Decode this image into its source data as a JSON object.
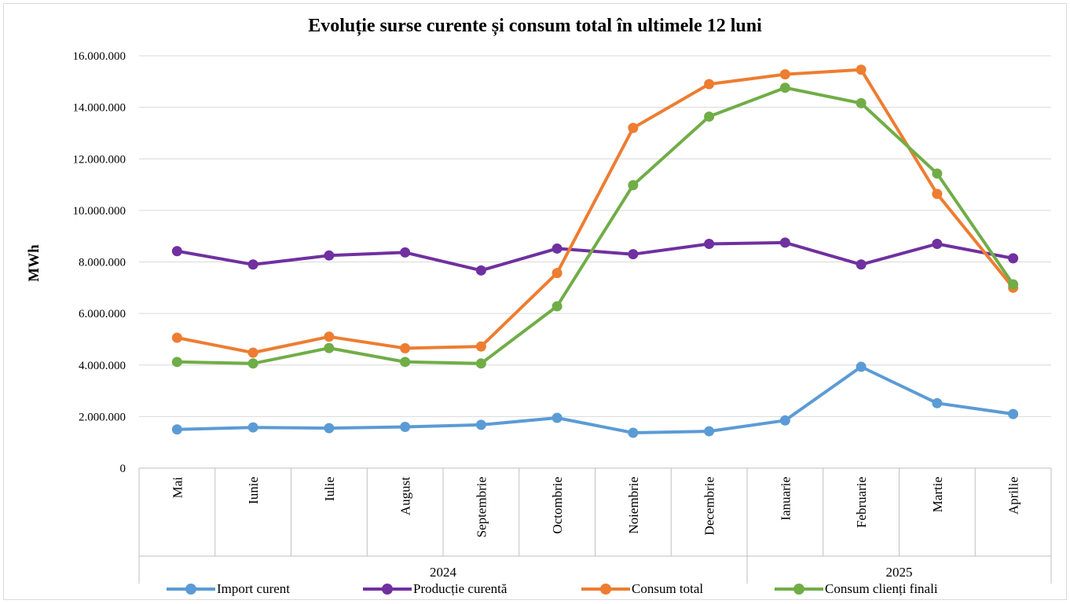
{
  "chart_data": {
    "type": "line",
    "title": "Evoluție surse curente și consum total în ultimele 12 luni",
    "ylabel": "MWh",
    "xlabel": "",
    "ylim": [
      0,
      16000000
    ],
    "y_ticks": [
      "0",
      "2.000.000",
      "4.000.000",
      "6.000.000",
      "8.000.000",
      "10.000.000",
      "12.000.000",
      "14.000.000",
      "16.000.000"
    ],
    "grid": true,
    "legend_position": "bottom",
    "categories": [
      "Mai",
      "Iunie",
      "Iulie",
      "August",
      "Septembrie",
      "Octombrie",
      "Noiembrie",
      "Decembrie",
      "Ianuarie",
      "Februarie",
      "Martie",
      "Aprilie"
    ],
    "year_groups": [
      {
        "label": "2024",
        "start": 0,
        "end": 7
      },
      {
        "label": "2025",
        "start": 8,
        "end": 11
      }
    ],
    "series": [
      {
        "name": "Import curent",
        "color": "#5b9bd5",
        "values": [
          1500000,
          1580000,
          1550000,
          1600000,
          1680000,
          1950000,
          1370000,
          1430000,
          1850000,
          3930000,
          2520000,
          2100000
        ]
      },
      {
        "name": "Producție curentă",
        "color": "#7030a0",
        "values": [
          8420000,
          7900000,
          8250000,
          8370000,
          7670000,
          8520000,
          8300000,
          8700000,
          8750000,
          7900000,
          8700000,
          8140000
        ]
      },
      {
        "name": "Consum total",
        "color": "#ed7d31",
        "values": [
          5060000,
          4480000,
          5100000,
          4650000,
          4720000,
          7570000,
          13200000,
          14900000,
          15280000,
          15460000,
          10640000,
          7000000
        ]
      },
      {
        "name": "Consum clienți finali",
        "color": "#70ad47",
        "values": [
          4120000,
          4060000,
          4660000,
          4120000,
          4060000,
          6280000,
          10980000,
          13640000,
          14760000,
          14160000,
          11430000,
          7130000
        ]
      }
    ]
  }
}
